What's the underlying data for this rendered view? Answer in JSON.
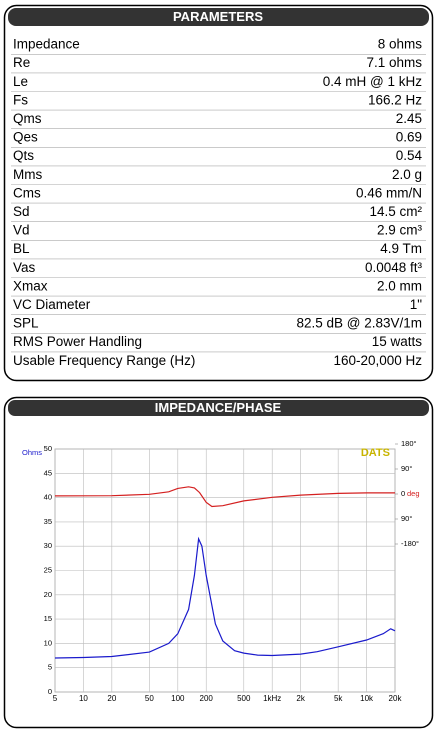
{
  "parameters": {
    "title": "PARAMETERS",
    "rows": [
      [
        "Impedance",
        "8 ohms"
      ],
      [
        "Re",
        "7.1 ohms"
      ],
      [
        "Le",
        "0.4 mH @ 1 kHz"
      ],
      [
        "Fs",
        "166.2 Hz"
      ],
      [
        "Qms",
        "2.45"
      ],
      [
        "Qes",
        "0.69"
      ],
      [
        "Qts",
        "0.54"
      ],
      [
        "Mms",
        "2.0 g"
      ],
      [
        "Cms",
        "0.46 mm/N"
      ],
      [
        "Sd",
        "14.5 cm²"
      ],
      [
        "Vd",
        "2.9 cm³"
      ],
      [
        "BL",
        "4.9 Tm"
      ],
      [
        "Vas",
        "0.0048 ft³"
      ],
      [
        "Xmax",
        "2.0 mm"
      ],
      [
        "VC Diameter",
        "1\""
      ],
      [
        "SPL",
        "82.5 dB @ 2.83V/1m"
      ],
      [
        "RMS Power Handling",
        "15 watts"
      ],
      [
        "Usable Frequency Range (Hz)",
        "160-20,000 Hz"
      ]
    ]
  },
  "chart_data": {
    "type": "line",
    "title": "IMPEDANCE/PHASE",
    "ylabel": "Ohms",
    "y2label": "deg",
    "annotation": "DATS",
    "log_x": true,
    "grid": true,
    "xlim": [
      5,
      20000
    ],
    "xticks": [
      5,
      10,
      20,
      50,
      100,
      200,
      500,
      {
        "value": 1000,
        "label": "1kHz"
      },
      {
        "value": 2000,
        "label": "2k"
      },
      {
        "value": 5000,
        "label": "5k"
      },
      {
        "value": 10000,
        "label": "10k"
      },
      {
        "value": 20000,
        "label": "20k"
      }
    ],
    "ylim": [
      0,
      50
    ],
    "yticks": [
      0,
      5,
      10,
      15,
      20,
      25,
      30,
      35,
      40,
      45,
      50
    ],
    "y2lim": [
      -180,
      180
    ],
    "y2ticks": [
      {
        "value": 180,
        "label": "180°"
      },
      {
        "value": 90,
        "label": "90°"
      },
      {
        "value": 0,
        "label": "0"
      },
      {
        "value": -90,
        "label": "90°"
      },
      {
        "value": -180,
        "label": "-180°"
      }
    ],
    "series": [
      {
        "name": "Impedance",
        "color": "#1a1acc",
        "x": [
          5,
          10,
          20,
          50,
          80,
          100,
          130,
          150,
          166,
          180,
          200,
          250,
          300,
          400,
          500,
          700,
          1000,
          2000,
          3000,
          5000,
          10000,
          15000,
          18000,
          20000
        ],
        "values": [
          7.0,
          7.1,
          7.3,
          8.2,
          10,
          12,
          17,
          24,
          31.5,
          30,
          24,
          14,
          10.5,
          8.5,
          8,
          7.6,
          7.5,
          7.8,
          8.3,
          9.3,
          10.7,
          12,
          13,
          12.6
        ]
      },
      {
        "name": "Phase",
        "color": "#d42020",
        "axis": "y2",
        "x": [
          5,
          20,
          50,
          80,
          100,
          130,
          150,
          170,
          200,
          230,
          300,
          500,
          1000,
          2000,
          5000,
          10000,
          20000
        ],
        "values": [
          -7,
          -6,
          -1,
          8,
          20,
          26,
          22,
          5,
          -30,
          -45,
          -42,
          -25,
          -12,
          -4,
          2,
          4,
          4
        ]
      }
    ]
  }
}
